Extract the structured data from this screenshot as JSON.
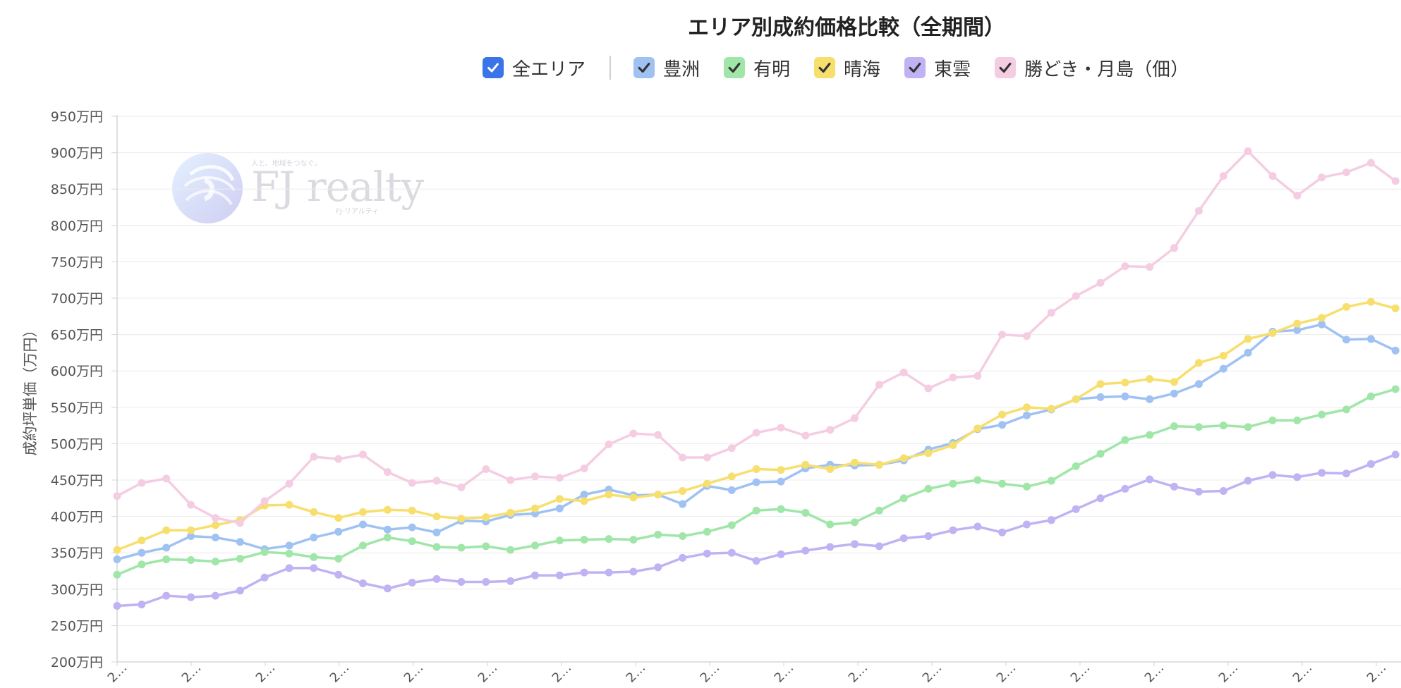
{
  "chart_data": {
    "type": "line",
    "title": "エリア別成約価格比較（全期間）",
    "ylabel": "成約坪単価（万円）",
    "ylim": [
      200,
      950
    ],
    "yticks": [
      200,
      250,
      300,
      350,
      400,
      450,
      500,
      550,
      600,
      650,
      700,
      750,
      800,
      850,
      900,
      950
    ],
    "y_tick_suffix": "万円",
    "grid": true,
    "legend_position": "top",
    "x_tick_labels": [
      "2…",
      "2…",
      "2…",
      "2…",
      "2…",
      "2…",
      "2…",
      "2…",
      "2…",
      "2…",
      "2…",
      "2…",
      "2…",
      "2…",
      "2…",
      "2…",
      "2…",
      "2…"
    ],
    "legend_toggle": {
      "label": "全エリア",
      "checked": true,
      "color": "#3b74e8"
    },
    "series": [
      {
        "name": "豊洲",
        "color": "#9fc2f3",
        "values": [
          341,
          350,
          357,
          373,
          371,
          365,
          355,
          360,
          371,
          379,
          389,
          382,
          385,
          378,
          394,
          393,
          402,
          404,
          411,
          430,
          437,
          429,
          430,
          417,
          442,
          436,
          447,
          448,
          466,
          471,
          470,
          471,
          477,
          492,
          501,
          520,
          526,
          539,
          547,
          561,
          564,
          565,
          561,
          569,
          582,
          603,
          625,
          654,
          656,
          664,
          643,
          644,
          628
        ]
      },
      {
        "name": "有明",
        "color": "#9fe6a8",
        "values": [
          320,
          334,
          341,
          340,
          338,
          342,
          351,
          349,
          344,
          342,
          360,
          371,
          366,
          358,
          357,
          359,
          354,
          360,
          367,
          368,
          369,
          368,
          375,
          373,
          379,
          388,
          408,
          410,
          405,
          389,
          392,
          408,
          425,
          438,
          445,
          450,
          445,
          441,
          449,
          469,
          486,
          505,
          512,
          524,
          523,
          525,
          523,
          532,
          532,
          540,
          547,
          565,
          575
        ]
      },
      {
        "name": "晴海",
        "color": "#f7df6d",
        "values": [
          354,
          367,
          381,
          381,
          388,
          395,
          415,
          416,
          406,
          398,
          406,
          409,
          408,
          400,
          397,
          399,
          405,
          411,
          424,
          421,
          430,
          426,
          430,
          435,
          445,
          455,
          465,
          464,
          471,
          465,
          474,
          471,
          480,
          487,
          498,
          521,
          540,
          550,
          548,
          561,
          582,
          584,
          589,
          585,
          611,
          621,
          644,
          652,
          665,
          673,
          688,
          695,
          686
        ]
      },
      {
        "name": "東雲",
        "color": "#c0b2f3",
        "values": [
          277,
          279,
          291,
          289,
          291,
          298,
          316,
          329,
          329,
          320,
          308,
          301,
          309,
          314,
          310,
          310,
          311,
          319,
          319,
          323,
          323,
          324,
          330,
          343,
          349,
          350,
          339,
          348,
          353,
          358,
          362,
          359,
          370,
          373,
          381,
          386,
          378,
          389,
          395,
          410,
          425,
          438,
          451,
          441,
          434,
          435,
          449,
          457,
          454,
          460,
          459,
          472,
          485
        ]
      },
      {
        "name": "勝どき・月島（佃）",
        "color": "#f5cde3",
        "values": [
          428,
          446,
          452,
          416,
          398,
          391,
          421,
          445,
          482,
          479,
          485,
          461,
          446,
          449,
          440,
          465,
          450,
          455,
          453,
          466,
          499,
          514,
          512,
          481,
          481,
          494,
          515,
          522,
          511,
          519,
          535,
          581,
          598,
          576,
          591,
          593,
          650,
          648,
          680,
          703,
          721,
          744,
          743,
          769,
          820,
          868,
          902,
          868,
          841,
          866,
          873,
          886,
          861
        ]
      }
    ]
  },
  "watermark": {
    "tagline": "人と、地域をつなぐ。",
    "name": "FJ realty",
    "subname": "FJ·リアルティ"
  }
}
